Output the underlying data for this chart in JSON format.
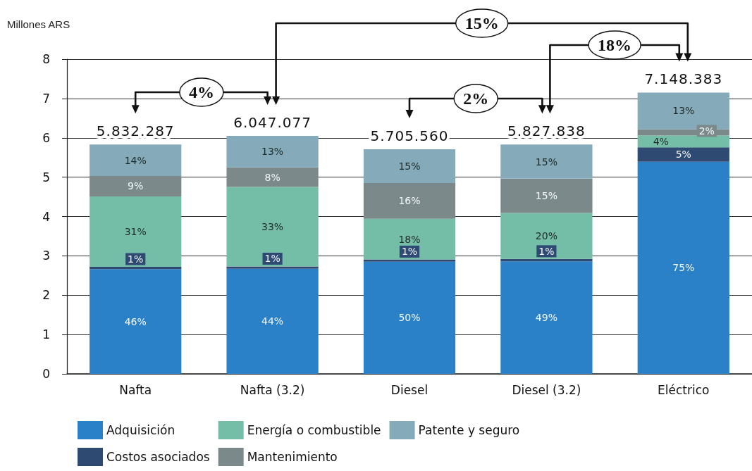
{
  "chart_data": {
    "type": "bar",
    "stacked": true,
    "ylabel": "Millones ARS",
    "categories": [
      "Nafta",
      "Nafta (3.2)",
      "Diesel",
      "Diesel (3.2)",
      "Eléctrico"
    ],
    "ylim": [
      0,
      8
    ],
    "yticks": [
      0,
      1,
      2,
      3,
      4,
      5,
      6,
      7,
      8
    ],
    "grid": "y",
    "legend": "bottom left",
    "annotations": [
      "4%",
      "15%",
      "2%",
      "18%",
      "5.832.287",
      "6.047.077",
      "5.705.560",
      "5.827.838",
      "7.148.383",
      "46%",
      "1%",
      "31%",
      "9%",
      "14%",
      "44%",
      "1%",
      "33%",
      "8%",
      "13%",
      "50%",
      "1%",
      "18%",
      "16%",
      "15%",
      "49%",
      "1%",
      "20%",
      "15%",
      "15%",
      "75%",
      "5%",
      "4%",
      "2%",
      "13%"
    ],
    "series": [
      {
        "name": "Adquisición",
        "color": "#2a81c8",
        "values": [
          2.66,
          2.67,
          2.85,
          2.86,
          5.39
        ]
      },
      {
        "name": "Costos asociados",
        "color": "#2e4a73",
        "values": [
          0.06,
          0.06,
          0.06,
          0.06,
          0.37
        ]
      },
      {
        "name": "Energía o combustible",
        "color": "#74bea7",
        "values": [
          1.79,
          2.02,
          1.03,
          1.17,
          0.3
        ]
      },
      {
        "name": "Mantenimiento",
        "color": "#7b898b",
        "values": [
          0.52,
          0.5,
          0.91,
          0.87,
          0.16
        ]
      },
      {
        "name": "Patente y seguro",
        "color": "#85aab9",
        "values": [
          0.8,
          0.8,
          0.86,
          0.87,
          0.93
        ]
      }
    ]
  }
}
